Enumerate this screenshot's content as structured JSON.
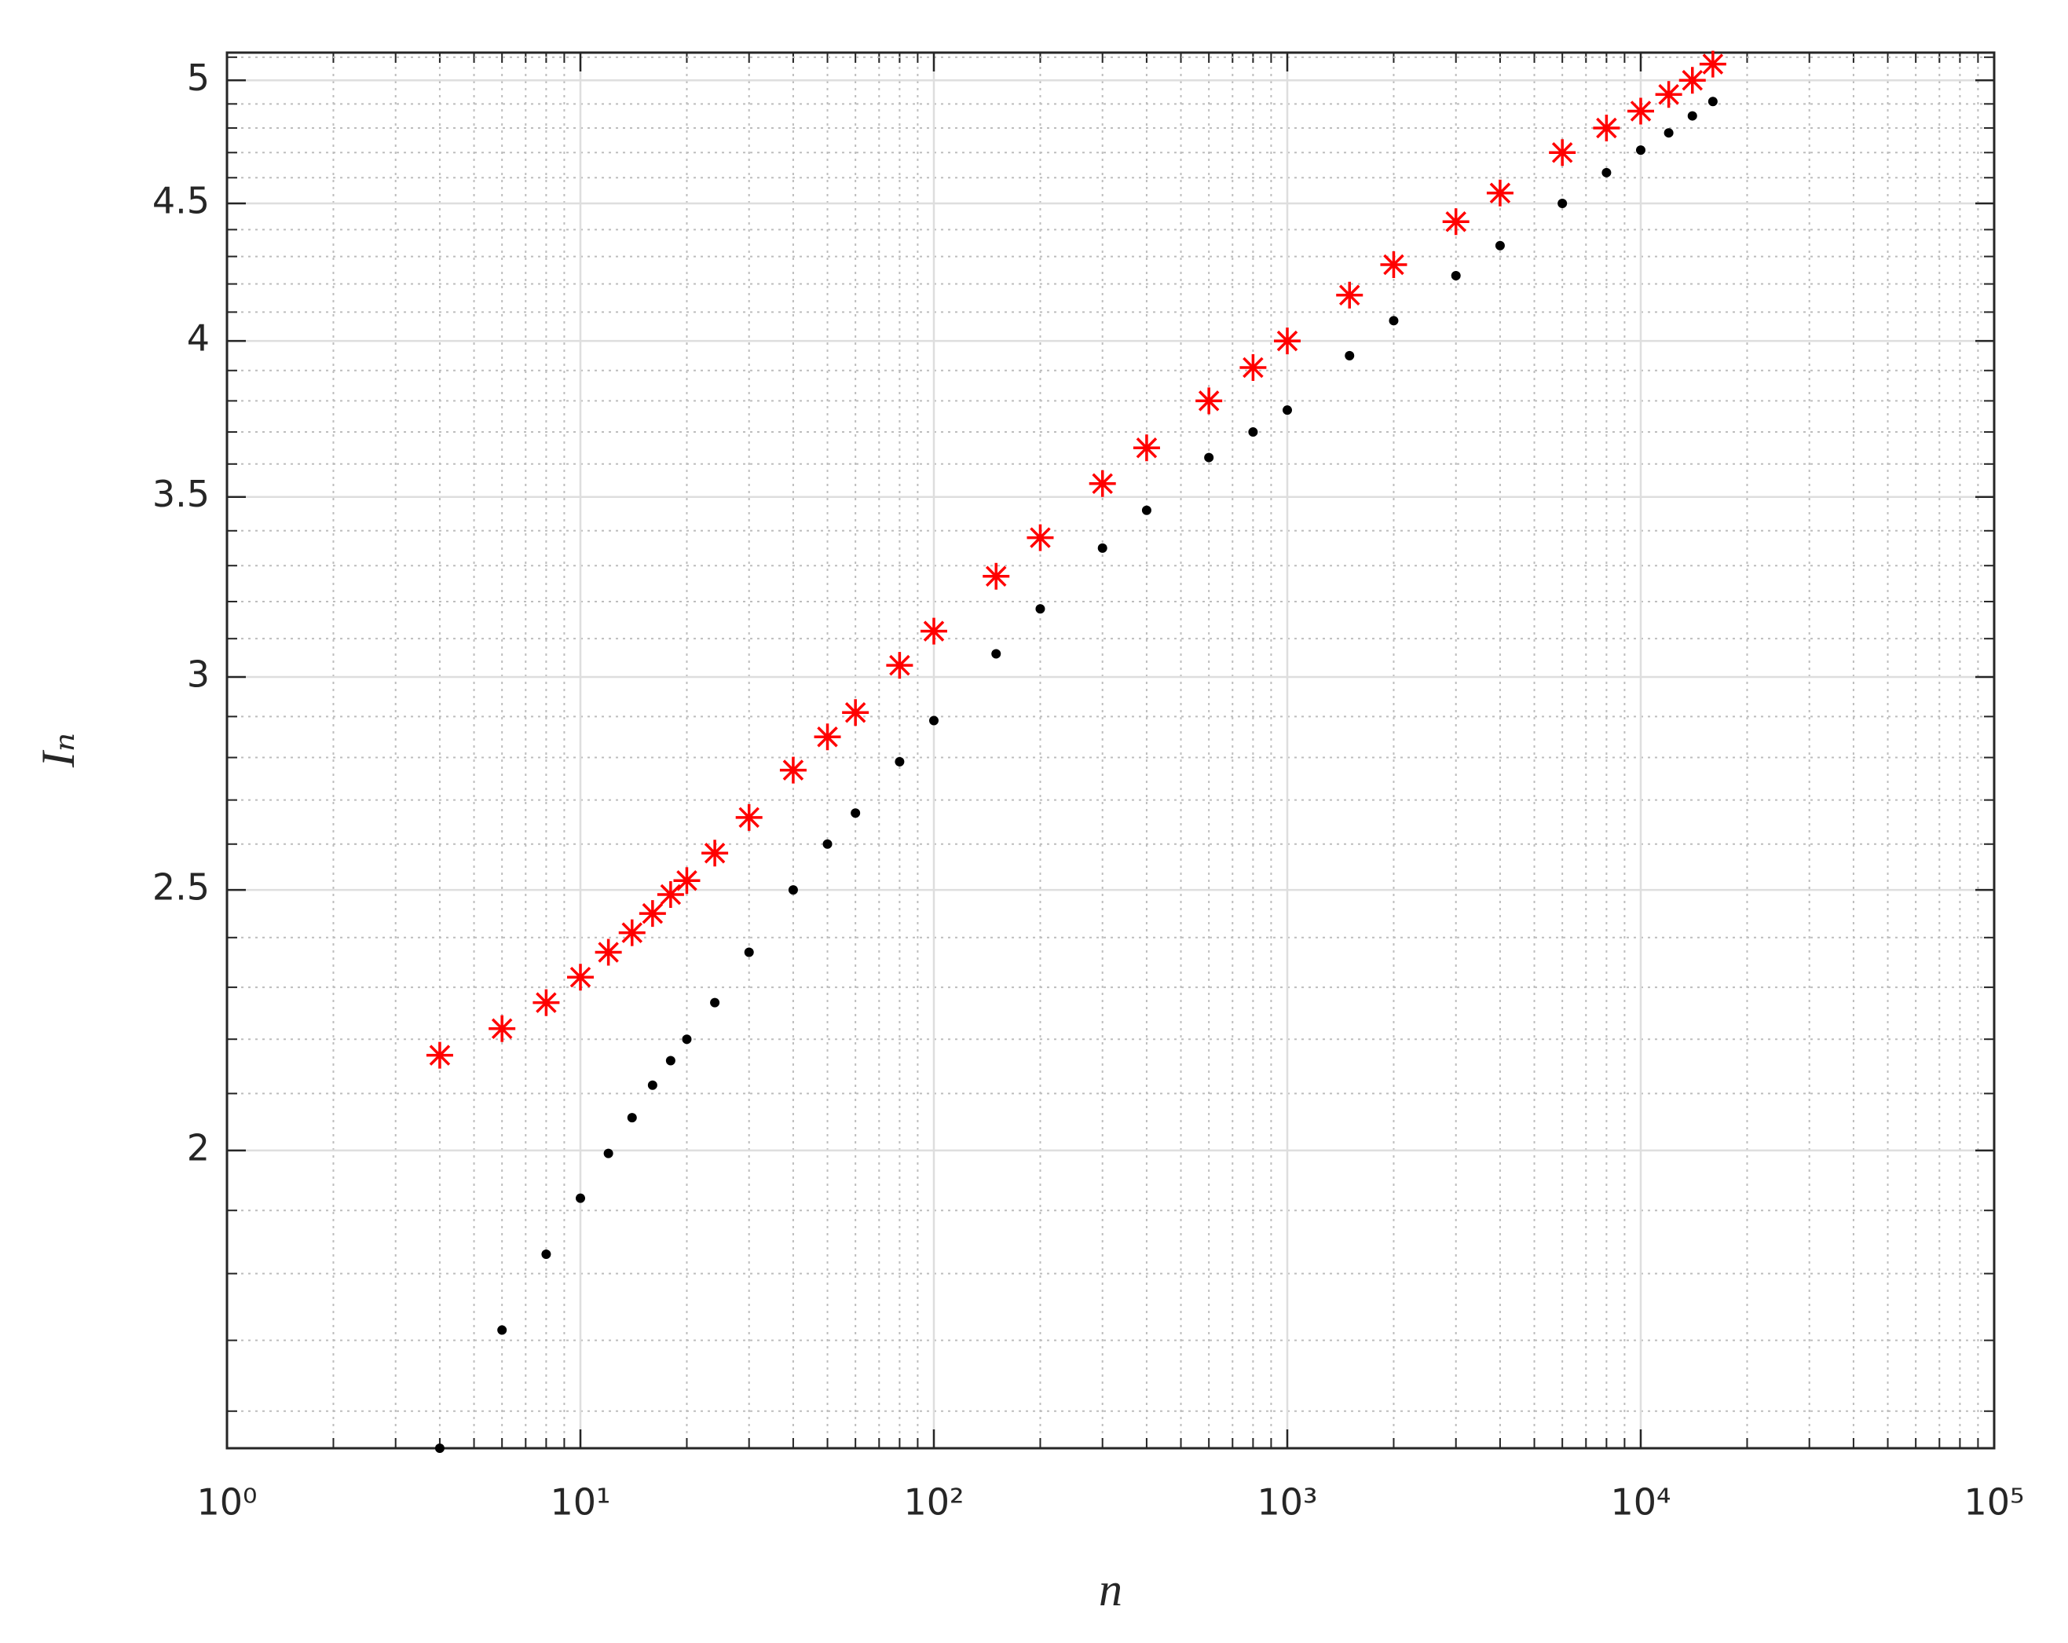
{
  "chart_data": {
    "type": "scatter",
    "xlabel": "n",
    "ylabel": "Iₙ",
    "xlog": true,
    "ylog": true,
    "grid": true,
    "minor_grid": true,
    "xlim": [
      1,
      100000
    ],
    "xticks": [
      {
        "value": 1,
        "label": "10⁰"
      },
      {
        "value": 10,
        "label": "10¹"
      },
      {
        "value": 100,
        "label": "10²"
      },
      {
        "value": 1000,
        "label": "10³"
      },
      {
        "value": 10000,
        "label": "10⁴"
      },
      {
        "value": 100000,
        "label": "10⁵"
      }
    ],
    "xminorticks": [
      2,
      3,
      4,
      5,
      6,
      7,
      8,
      9,
      20,
      30,
      40,
      50,
      60,
      70,
      80,
      90,
      200,
      300,
      400,
      500,
      600,
      700,
      800,
      900,
      2000,
      3000,
      4000,
      5000,
      6000,
      7000,
      8000,
      9000,
      20000,
      30000,
      40000,
      50000,
      60000,
      70000,
      80000,
      90000
    ],
    "ylim": [
      1.55,
      5.12
    ],
    "yticks": [
      2,
      2.5,
      3,
      3.5,
      4,
      4.5,
      5
    ],
    "yminorticks": [
      1.6,
      1.7,
      1.8,
      1.9,
      2.1,
      2.2,
      2.3,
      2.4,
      2.6,
      2.7,
      2.8,
      2.9,
      3.1,
      3.2,
      3.3,
      3.4,
      3.6,
      3.7,
      3.8,
      3.9,
      4.1,
      4.2,
      4.3,
      4.4,
      4.6,
      4.7,
      4.8,
      4.9,
      5.1
    ],
    "x": [
      4,
      6,
      8,
      10,
      12,
      14,
      16,
      18,
      20,
      24,
      30,
      40,
      50,
      60,
      80,
      100,
      150,
      200,
      300,
      400,
      600,
      800,
      1000,
      1500,
      2000,
      3000,
      4000,
      6000,
      8000,
      10000,
      12000,
      14000,
      16000
    ],
    "series": [
      {
        "color": "#ff0000",
        "marker": "asterisk",
        "values": [
          2.17,
          2.22,
          2.27,
          2.32,
          2.37,
          2.41,
          2.45,
          2.49,
          2.52,
          2.58,
          2.66,
          2.77,
          2.85,
          2.91,
          3.03,
          3.12,
          3.27,
          3.38,
          3.54,
          3.65,
          3.8,
          3.91,
          4.0,
          4.16,
          4.27,
          4.43,
          4.54,
          4.7,
          4.8,
          4.87,
          4.94,
          5.0,
          5.07
        ]
      },
      {
        "color": "#000000",
        "marker": "dot",
        "values": [
          1.55,
          1.715,
          1.83,
          1.92,
          1.995,
          2.057,
          2.115,
          2.16,
          2.2,
          2.27,
          2.37,
          2.5,
          2.6,
          2.67,
          2.79,
          2.89,
          3.06,
          3.18,
          3.35,
          3.46,
          3.62,
          3.7,
          3.77,
          3.95,
          4.07,
          4.23,
          4.34,
          4.5,
          4.62,
          4.71,
          4.78,
          4.85,
          4.91
        ]
      }
    ]
  }
}
